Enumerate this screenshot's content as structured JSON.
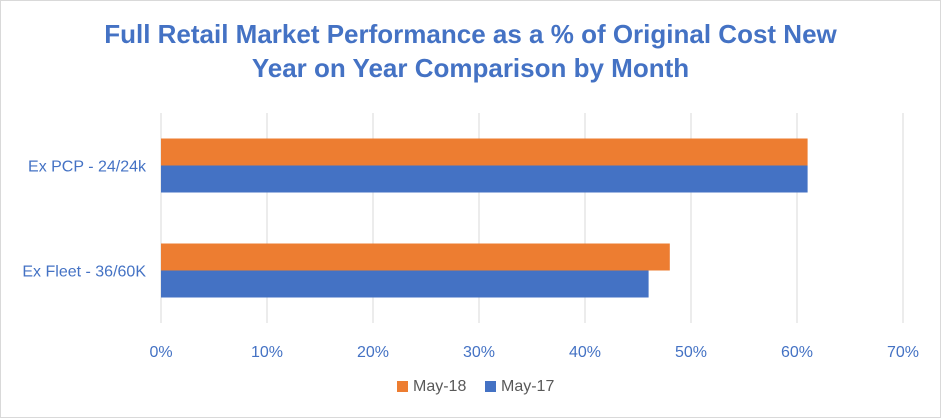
{
  "chart_data": {
    "type": "bar",
    "orientation": "horizontal",
    "title": "Full Retail Market Performance as a % of Original Cost New",
    "subtitle": "Year on Year Comparison by Month",
    "categories": [
      "Ex PCP - 24/24k",
      "Ex Fleet - 36/60K"
    ],
    "series": [
      {
        "name": "May-18",
        "color": "#ed7d31",
        "values": [
          61,
          48
        ]
      },
      {
        "name": "May-17",
        "color": "#4472c4",
        "values": [
          61,
          46
        ]
      }
    ],
    "xlim": [
      0,
      70
    ],
    "x_ticks": [
      0,
      10,
      20,
      30,
      40,
      50,
      60,
      70
    ],
    "x_tick_labels": [
      "0%",
      "10%",
      "20%",
      "30%",
      "40%",
      "50%",
      "60%",
      "70%"
    ],
    "grid": true,
    "legend_position": "bottom"
  }
}
